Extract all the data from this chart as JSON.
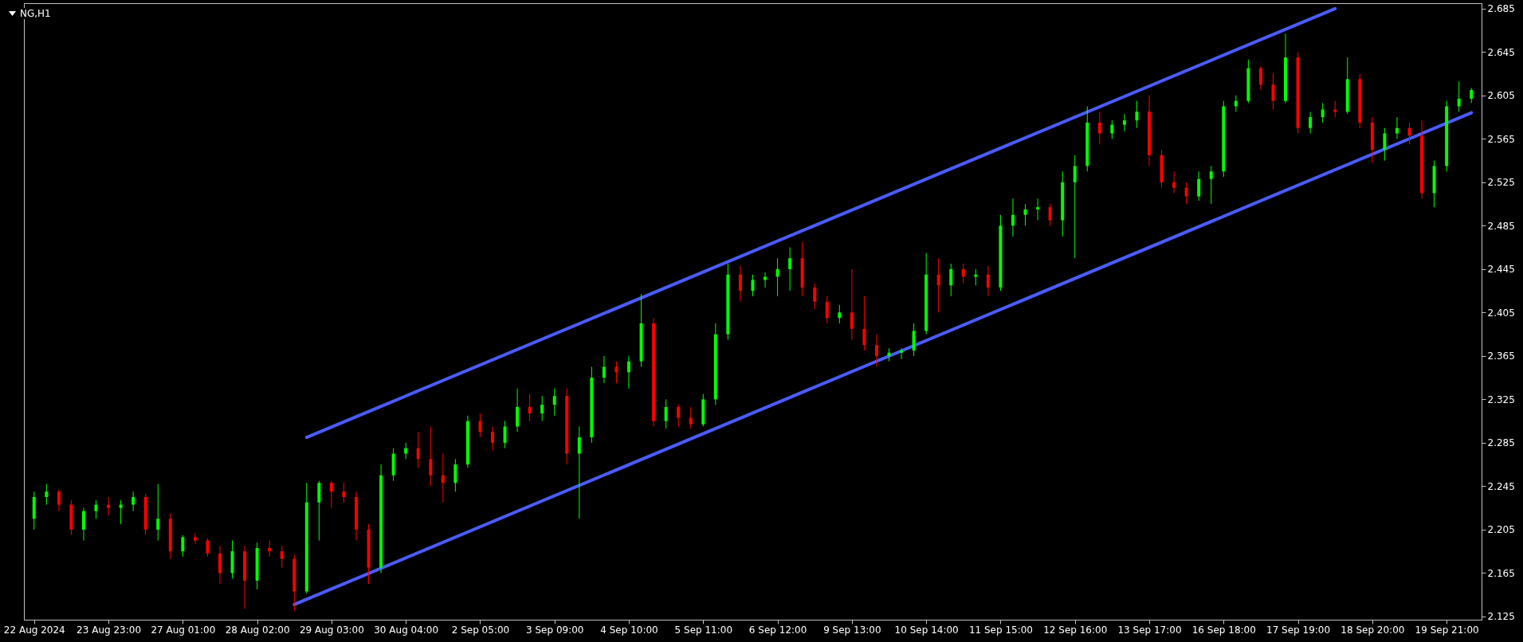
{
  "chart_data": {
    "type": "candlestick",
    "title": "NG,H1",
    "categories": [
      "22 Aug 2024",
      null,
      null,
      null,
      null,
      null,
      "23 Aug 23:00",
      null,
      null,
      null,
      null,
      null,
      "27 Aug 01:00",
      null,
      null,
      null,
      null,
      null,
      "28 Aug 02:00",
      null,
      null,
      null,
      null,
      null,
      "29 Aug 03:00",
      null,
      null,
      null,
      null,
      null,
      "30 Aug 04:00",
      null,
      null,
      null,
      null,
      null,
      "2 Sep 05:00",
      null,
      null,
      null,
      null,
      null,
      "3 Sep 09:00",
      null,
      null,
      null,
      null,
      null,
      "4 Sep 10:00",
      null,
      null,
      null,
      null,
      null,
      "5 Sep 11:00",
      null,
      null,
      null,
      null,
      null,
      "6 Sep 12:00",
      null,
      null,
      null,
      null,
      null,
      "9 Sep 13:00",
      null,
      null,
      null,
      null,
      null,
      "10 Sep 14:00",
      null,
      null,
      null,
      null,
      null,
      "11 Sep 15:00",
      null,
      null,
      null,
      null,
      null,
      "12 Sep 16:00",
      null,
      null,
      null,
      null,
      null,
      "13 Sep 17:00",
      null,
      null,
      null,
      null,
      null,
      "16 Sep 18:00",
      null,
      null,
      null,
      null,
      null,
      "17 Sep 19:00",
      null,
      null,
      null,
      null,
      null,
      "18 Sep 20:00",
      null,
      null,
      null,
      null,
      null,
      "19 Sep 21:00",
      null,
      null
    ],
    "ohlc": [
      [
        2.215,
        2.24,
        2.205,
        2.235
      ],
      [
        2.235,
        2.247,
        2.228,
        2.24
      ],
      [
        2.24,
        2.242,
        2.222,
        2.228
      ],
      [
        2.228,
        2.232,
        2.2,
        2.205
      ],
      [
        2.205,
        2.225,
        2.195,
        2.222
      ],
      [
        2.222,
        2.232,
        2.215,
        2.228
      ],
      [
        2.228,
        2.235,
        2.218,
        2.225
      ],
      [
        2.225,
        2.232,
        2.21,
        2.228
      ],
      [
        2.228,
        2.24,
        2.222,
        2.235
      ],
      [
        2.235,
        2.238,
        2.2,
        2.205
      ],
      [
        2.205,
        2.247,
        2.195,
        2.215
      ],
      [
        2.215,
        2.22,
        2.178,
        2.185
      ],
      [
        2.185,
        2.2,
        2.18,
        2.198
      ],
      [
        2.198,
        2.202,
        2.192,
        2.195
      ],
      [
        2.195,
        2.197,
        2.18,
        2.183
      ],
      [
        2.183,
        2.19,
        2.155,
        2.165
      ],
      [
        2.165,
        2.195,
        2.16,
        2.185
      ],
      [
        2.185,
        2.19,
        2.132,
        2.158
      ],
      [
        2.158,
        2.193,
        2.15,
        2.188
      ],
      [
        2.188,
        2.195,
        2.18,
        2.185
      ],
      [
        2.185,
        2.19,
        2.17,
        2.178
      ],
      [
        2.178,
        2.182,
        2.13,
        2.148
      ],
      [
        2.148,
        2.248,
        2.146,
        2.23
      ],
      [
        2.23,
        2.25,
        2.195,
        2.248
      ],
      [
        2.248,
        2.25,
        2.225,
        2.24
      ],
      [
        2.24,
        2.248,
        2.23,
        2.235
      ],
      [
        2.235,
        2.24,
        2.195,
        2.205
      ],
      [
        2.205,
        2.21,
        2.155,
        2.17
      ],
      [
        2.17,
        2.265,
        2.165,
        2.255
      ],
      [
        2.255,
        2.28,
        2.25,
        2.275
      ],
      [
        2.275,
        2.285,
        2.27,
        2.28
      ],
      [
        2.28,
        2.295,
        2.262,
        2.27
      ],
      [
        2.27,
        2.3,
        2.245,
        2.255
      ],
      [
        2.255,
        2.275,
        2.23,
        2.248
      ],
      [
        2.248,
        2.27,
        2.24,
        2.265
      ],
      [
        2.265,
        2.31,
        2.262,
        2.305
      ],
      [
        2.305,
        2.312,
        2.29,
        2.295
      ],
      [
        2.295,
        2.3,
        2.278,
        2.285
      ],
      [
        2.285,
        2.305,
        2.28,
        2.3
      ],
      [
        2.3,
        2.335,
        2.295,
        2.318
      ],
      [
        2.318,
        2.33,
        2.305,
        2.312
      ],
      [
        2.312,
        2.328,
        2.305,
        2.32
      ],
      [
        2.32,
        2.335,
        2.31,
        2.328
      ],
      [
        2.328,
        2.335,
        2.265,
        2.275
      ],
      [
        2.275,
        2.3,
        2.215,
        2.29
      ],
      [
        2.29,
        2.355,
        2.285,
        2.345
      ],
      [
        2.345,
        2.365,
        2.34,
        2.355
      ],
      [
        2.355,
        2.36,
        2.34,
        2.35
      ],
      [
        2.35,
        2.365,
        2.335,
        2.36
      ],
      [
        2.36,
        2.422,
        2.355,
        2.395
      ],
      [
        2.395,
        2.4,
        2.3,
        2.305
      ],
      [
        2.305,
        2.325,
        2.298,
        2.318
      ],
      [
        2.318,
        2.32,
        2.3,
        2.308
      ],
      [
        2.308,
        2.318,
        2.298,
        2.302
      ],
      [
        2.302,
        2.33,
        2.3,
        2.325
      ],
      [
        2.325,
        2.395,
        2.32,
        2.385
      ],
      [
        2.385,
        2.45,
        2.38,
        2.44
      ],
      [
        2.44,
        2.448,
        2.415,
        2.425
      ],
      [
        2.425,
        2.44,
        2.42,
        2.435
      ],
      [
        2.435,
        2.442,
        2.428,
        2.438
      ],
      [
        2.438,
        2.455,
        2.42,
        2.445
      ],
      [
        2.445,
        2.465,
        2.425,
        2.455
      ],
      [
        2.455,
        2.47,
        2.42,
        2.428
      ],
      [
        2.428,
        2.432,
        2.408,
        2.415
      ],
      [
        2.415,
        2.42,
        2.395,
        2.4
      ],
      [
        2.4,
        2.412,
        2.395,
        2.405
      ],
      [
        2.405,
        2.445,
        2.38,
        2.39
      ],
      [
        2.39,
        2.42,
        2.37,
        2.375
      ],
      [
        2.375,
        2.385,
        2.355,
        2.365
      ],
      [
        2.365,
        2.372,
        2.36,
        2.368
      ],
      [
        2.368,
        2.372,
        2.362,
        2.37
      ],
      [
        2.37,
        2.395,
        2.365,
        2.388
      ],
      [
        2.388,
        2.46,
        2.385,
        2.44
      ],
      [
        2.44,
        2.455,
        2.405,
        2.43
      ],
      [
        2.43,
        2.45,
        2.42,
        2.445
      ],
      [
        2.445,
        2.45,
        2.432,
        2.438
      ],
      [
        2.438,
        2.445,
        2.43,
        2.44
      ],
      [
        2.44,
        2.448,
        2.42,
        2.428
      ],
      [
        2.428,
        2.495,
        2.425,
        2.485
      ],
      [
        2.485,
        2.51,
        2.475,
        2.495
      ],
      [
        2.495,
        2.505,
        2.485,
        2.5
      ],
      [
        2.5,
        2.51,
        2.49,
        2.502
      ],
      [
        2.502,
        2.505,
        2.485,
        2.49
      ],
      [
        2.49,
        2.535,
        2.475,
        2.525
      ],
      [
        2.525,
        2.55,
        2.455,
        2.54
      ],
      [
        2.54,
        2.595,
        2.535,
        2.58
      ],
      [
        2.58,
        2.59,
        2.56,
        2.57
      ],
      [
        2.57,
        2.582,
        2.565,
        2.578
      ],
      [
        2.578,
        2.588,
        2.572,
        2.582
      ],
      [
        2.582,
        2.6,
        2.575,
        2.59
      ],
      [
        2.59,
        2.605,
        2.54,
        2.55
      ],
      [
        2.55,
        2.555,
        2.52,
        2.525
      ],
      [
        2.525,
        2.535,
        2.515,
        2.52
      ],
      [
        2.52,
        2.525,
        2.505,
        2.512
      ],
      [
        2.512,
        2.535,
        2.508,
        2.528
      ],
      [
        2.528,
        2.54,
        2.505,
        2.535
      ],
      [
        2.535,
        2.6,
        2.53,
        2.595
      ],
      [
        2.595,
        2.605,
        2.59,
        2.6
      ],
      [
        2.6,
        2.638,
        2.598,
        2.63
      ],
      [
        2.63,
        2.632,
        2.61,
        2.615
      ],
      [
        2.615,
        2.625,
        2.592,
        2.6
      ],
      [
        2.6,
        2.662,
        2.598,
        2.64
      ],
      [
        2.64,
        2.645,
        2.57,
        2.575
      ],
      [
        2.575,
        2.59,
        2.57,
        2.585
      ],
      [
        2.585,
        2.598,
        2.58,
        2.592
      ],
      [
        2.592,
        2.6,
        2.585,
        2.59
      ],
      [
        2.59,
        2.64,
        2.588,
        2.62
      ],
      [
        2.62,
        2.625,
        2.575,
        2.58
      ],
      [
        2.58,
        2.585,
        2.543,
        2.555
      ],
      [
        2.555,
        2.575,
        2.545,
        2.57
      ],
      [
        2.57,
        2.585,
        2.565,
        2.575
      ],
      [
        2.575,
        2.58,
        2.56,
        2.568
      ],
      [
        2.568,
        2.582,
        2.51,
        2.515
      ],
      [
        2.515,
        2.545,
        2.502,
        2.54
      ],
      [
        2.54,
        2.6,
        2.535,
        2.595
      ],
      [
        2.595,
        2.618,
        2.59,
        2.602
      ],
      [
        2.602,
        2.612,
        2.598,
        2.61
      ]
    ],
    "colors": [
      "#00ff00",
      "#00ff00",
      "#ff0000",
      "#ff0000",
      "#00ff00",
      "#00ff00",
      "#ff0000",
      "#00ff00",
      "#00ff00",
      "#ff0000",
      "#00ff00",
      "#ff0000",
      "#00ff00",
      "#ff0000",
      "#ff0000",
      "#ff0000",
      "#00ff00",
      "#ff0000",
      "#00ff00",
      "#ff0000",
      "#ff0000",
      "#ff0000",
      "#00ff00",
      "#00ff00",
      "#ff0000",
      "#ff0000",
      "#ff0000",
      "#ff0000",
      "#00ff00",
      "#00ff00",
      "#00ff00",
      "#ff0000",
      "#ff0000",
      "#ff0000",
      "#00ff00",
      "#00ff00",
      "#ff0000",
      "#ff0000",
      "#00ff00",
      "#00ff00",
      "#ff0000",
      "#00ff00",
      "#00ff00",
      "#ff0000",
      "#00ff00",
      "#00ff00",
      "#00ff00",
      "#ff0000",
      "#00ff00",
      "#00ff00",
      "#ff0000",
      "#00ff00",
      "#ff0000",
      "#ff0000",
      "#00ff00",
      "#00ff00",
      "#00ff00",
      "#ff0000",
      "#00ff00",
      "#00ff00",
      "#00ff00",
      "#00ff00",
      "#ff0000",
      "#ff0000",
      "#ff0000",
      "#00ff00",
      "#ff0000",
      "#ff0000",
      "#ff0000",
      "#00ff00",
      "#00ff00",
      "#00ff00",
      "#00ff00",
      "#ff0000",
      "#00ff00",
      "#ff0000",
      "#00ff00",
      "#ff0000",
      "#00ff00",
      "#00ff00",
      "#00ff00",
      "#00ff00",
      "#ff0000",
      "#00ff00",
      "#00ff00",
      "#00ff00",
      "#ff0000",
      "#00ff00",
      "#00ff00",
      "#00ff00",
      "#ff0000",
      "#ff0000",
      "#ff0000",
      "#ff0000",
      "#00ff00",
      "#00ff00",
      "#00ff00",
      "#00ff00",
      "#00ff00",
      "#ff0000",
      "#ff0000",
      "#00ff00",
      "#ff0000",
      "#00ff00",
      "#00ff00",
      "#ff0000",
      "#00ff00",
      "#ff0000",
      "#ff0000",
      "#00ff00",
      "#00ff00",
      "#ff0000",
      "#ff0000",
      "#00ff00",
      "#00ff00",
      "#00ff00",
      "#00ff00"
    ],
    "series": [
      {
        "type": "line",
        "color": "#4b5cff",
        "values": [
          null,
          null,
          null,
          null,
          null,
          null,
          null,
          null,
          null,
          null,
          null,
          null,
          null,
          null,
          null,
          null,
          null,
          null,
          null,
          null,
          null,
          null,
          2.29,
          null,
          null,
          null,
          null,
          null,
          null,
          null,
          null,
          null,
          null,
          null,
          null,
          null,
          null,
          null,
          null,
          null,
          null,
          null,
          null,
          null,
          null,
          null,
          null,
          null,
          null,
          null,
          null,
          null,
          null,
          null,
          null,
          null,
          null,
          null,
          null,
          null,
          null,
          null,
          null,
          null,
          null,
          null,
          null,
          null,
          null,
          null,
          null,
          null,
          null,
          null,
          null,
          null,
          null,
          null,
          null,
          null,
          null,
          null,
          null,
          null,
          null,
          null,
          null,
          null,
          null,
          null,
          null,
          null,
          null,
          null,
          null,
          null,
          null,
          null,
          null,
          null,
          null,
          null,
          null,
          null,
          null,
          2.685,
          null,
          null,
          null,
          null,
          null,
          null,
          null,
          null,
          null,
          null,
          null
        ]
      },
      {
        "type": "line",
        "color": "#4b5cff",
        "values": [
          null,
          null,
          null,
          null,
          null,
          null,
          null,
          null,
          null,
          null,
          null,
          null,
          null,
          null,
          null,
          null,
          null,
          null,
          null,
          null,
          null,
          2.136,
          null,
          null,
          null,
          null,
          null,
          null,
          null,
          null,
          null,
          null,
          null,
          null,
          null,
          null,
          null,
          null,
          null,
          null,
          null,
          null,
          null,
          null,
          null,
          null,
          null,
          null,
          null,
          null,
          null,
          null,
          null,
          null,
          null,
          null,
          null,
          null,
          null,
          null,
          null,
          null,
          null,
          null,
          null,
          null,
          null,
          null,
          null,
          null,
          null,
          null,
          null,
          null,
          null,
          null,
          null,
          null,
          null,
          null,
          null,
          null,
          null,
          null,
          null,
          null,
          null,
          null,
          null,
          null,
          null,
          null,
          null,
          null,
          null,
          null,
          null,
          null,
          null,
          null,
          null,
          null,
          null,
          null,
          null,
          null,
          null,
          null,
          null,
          null,
          null,
          null,
          null,
          null,
          null,
          null,
          2.589
        ]
      }
    ],
    "ylim": [
      2.122,
      2.69
    ],
    "yticks": [
      2.125,
      2.165,
      2.205,
      2.245,
      2.285,
      2.325,
      2.365,
      2.405,
      2.445,
      2.485,
      2.525,
      2.565,
      2.605,
      2.645,
      2.685
    ],
    "grid": false
  }
}
